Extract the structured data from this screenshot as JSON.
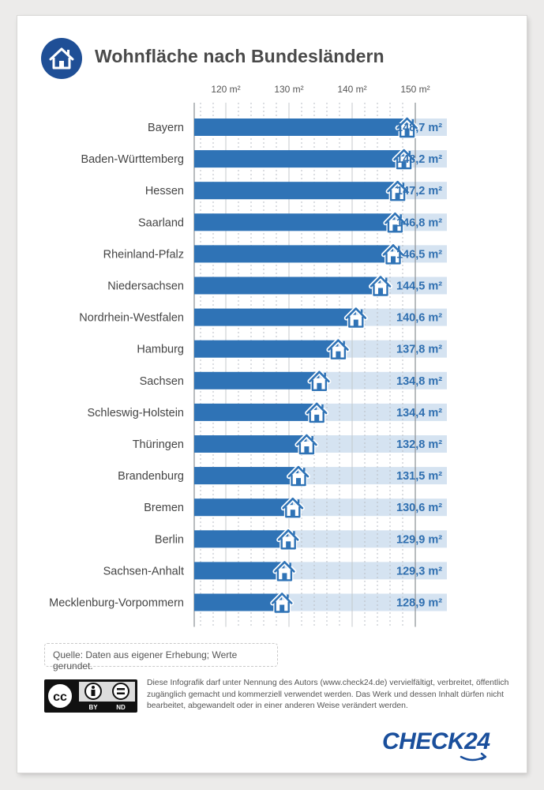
{
  "title": "Wohnfläche nach Bundesländern",
  "chart_data": {
    "type": "bar",
    "orientation": "horizontal",
    "title": "Wohnfläche nach Bundesländern",
    "xlim": [
      115,
      150
    ],
    "ticks": [
      120,
      130,
      140,
      150
    ],
    "tick_labels": [
      "120 m²",
      "130 m²",
      "140 m²",
      "150 m²"
    ],
    "categories": [
      "Bayern",
      "Baden-Württemberg",
      "Hessen",
      "Saarland",
      "Rheinland-Pfalz",
      "Niedersachsen",
      "Nordrhein-Westfalen",
      "Hamburg",
      "Sachsen",
      "Schleswig-Holstein",
      "Thüringen",
      "Brandenburg",
      "Bremen",
      "Berlin",
      "Sachsen-Anhalt",
      "Mecklenburg-Vorpommern"
    ],
    "values": [
      148.7,
      148.2,
      147.2,
      146.8,
      146.5,
      144.5,
      140.6,
      137.8,
      134.8,
      134.4,
      132.8,
      131.5,
      130.6,
      129.9,
      129.3,
      128.9
    ],
    "value_labels": [
      "148,7 m²",
      "148,2 m²",
      "147,2 m²",
      "146,8 m²",
      "146,5 m²",
      "144,5 m²",
      "140,6 m²",
      "137,8 m²",
      "134,8 m²",
      "134,4 m²",
      "132,8 m²",
      "131,5 m²",
      "130,6 m²",
      "129,9 m²",
      "129,3 m²",
      "128,9 m²"
    ],
    "grid": true,
    "marker_icon": "house-icon"
  },
  "colors": {
    "bar": "#2f73b6",
    "bar_track": "#d5e3f1",
    "value_text": "#2f6fb0",
    "label_text": "#444444",
    "brand": "#1a4f9c"
  },
  "source": "Quelle: Daten aus eigener Erhebung; Werte gerundet.",
  "license_text": "Diese Infografik darf unter Nennung des Autors (www.check24.de) vervielfältigt, verbreitet, öffentlich zugänglich gemacht und kommerziell verwendet werden. Das Werk und dessen Inhalt dürfen nicht bearbeitet, abgewandelt oder in einer anderen Weise verändert werden.",
  "cc_badge": {
    "icon": "creative-commons-icon",
    "labels": [
      "BY",
      "ND"
    ]
  },
  "logo": "CHECK24",
  "title_icon": "house-icon"
}
